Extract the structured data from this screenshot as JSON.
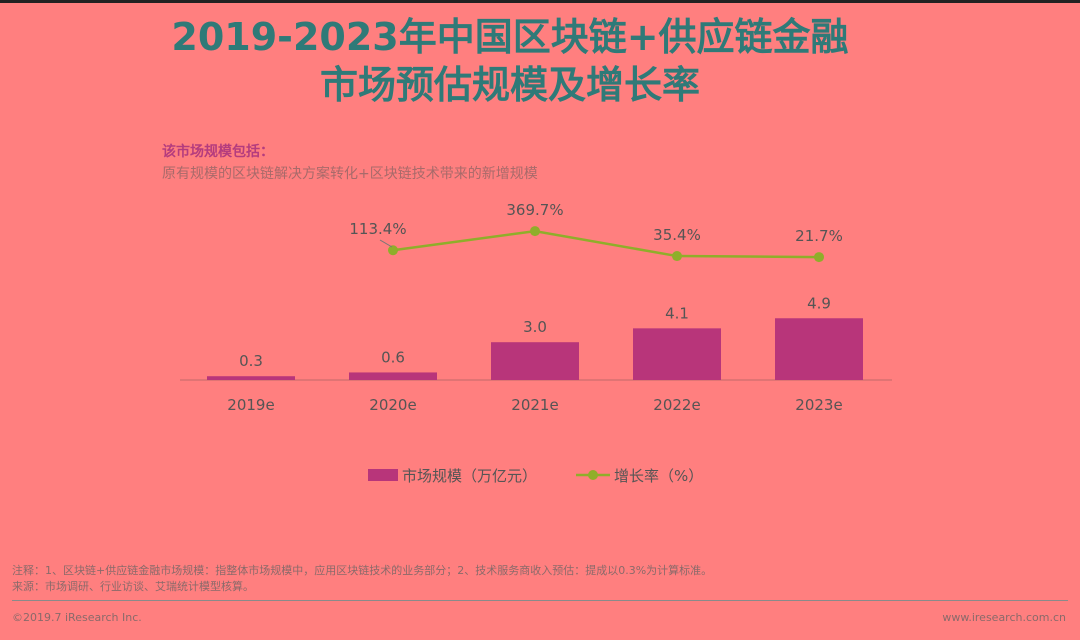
{
  "title_line1": "2019-2023年中国区块链+供应链金融",
  "title_line2": "市场预估规模及增长率",
  "scope_label": "该市场规模包括：",
  "scope_text": "原有规模的区块链解决方案转化+区块链技术带来的新增规模",
  "colors": {
    "bar": "#b8357a",
    "line": "#8fae2a",
    "title": "#2f7a78"
  },
  "chart_data": {
    "type": "bar+line",
    "categories": [
      "2019e",
      "2020e",
      "2021e",
      "2022e",
      "2023e"
    ],
    "series": [
      {
        "name": "市场规模（万亿元）",
        "type": "bar",
        "values": [
          0.3,
          0.6,
          3.0,
          4.1,
          4.9
        ],
        "labels": [
          "0.3",
          "0.6",
          "3.0",
          "4.1",
          "4.9"
        ]
      },
      {
        "name": "增长率（%）",
        "type": "line",
        "values": [
          null,
          113.4,
          369.7,
          35.4,
          21.7
        ],
        "labels": [
          "",
          "113.4%",
          "369.7%",
          "35.4%",
          "21.7%"
        ]
      }
    ],
    "legend": "bottom"
  },
  "note1": "注释：1、区块链+供应链金融市场规模：指整体市场规模中，应用区块链技术的业务部分；2、技术服务商收入预估：提成以0.3%为计算标准。",
  "note2": "来源：市场调研、行业访谈、艾瑞统计模型核算。",
  "copyright": "©2019.7 iResearch Inc.",
  "website": "www.iresearch.com.cn"
}
